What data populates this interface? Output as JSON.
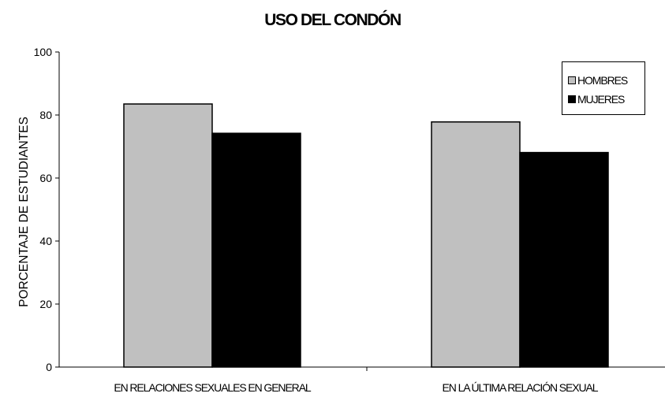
{
  "colors": {
    "hombres": "#c0c0c0",
    "mujeres": "#000000",
    "axis": "#000000"
  },
  "chart_data": {
    "type": "bar",
    "title": "USO DEL CONDÓN",
    "xlabel": "",
    "ylabel": "PORCENTAJE DE ESTUDIANTES",
    "categories": [
      "EN RELACIONES SEXUALES EN GENERAL",
      "EN LA ÚLTIMA RELACIÓN SEXUAL"
    ],
    "series": [
      {
        "name": "HOMBRES",
        "values": [
          83.5,
          77.8
        ]
      },
      {
        "name": "MUJERES",
        "values": [
          74.2,
          68.1
        ]
      }
    ],
    "ylim": [
      0,
      100
    ],
    "yticks": [
      "0",
      "20",
      "40",
      "60",
      "80",
      "100"
    ],
    "grid": false,
    "legend_position": "top-right"
  }
}
